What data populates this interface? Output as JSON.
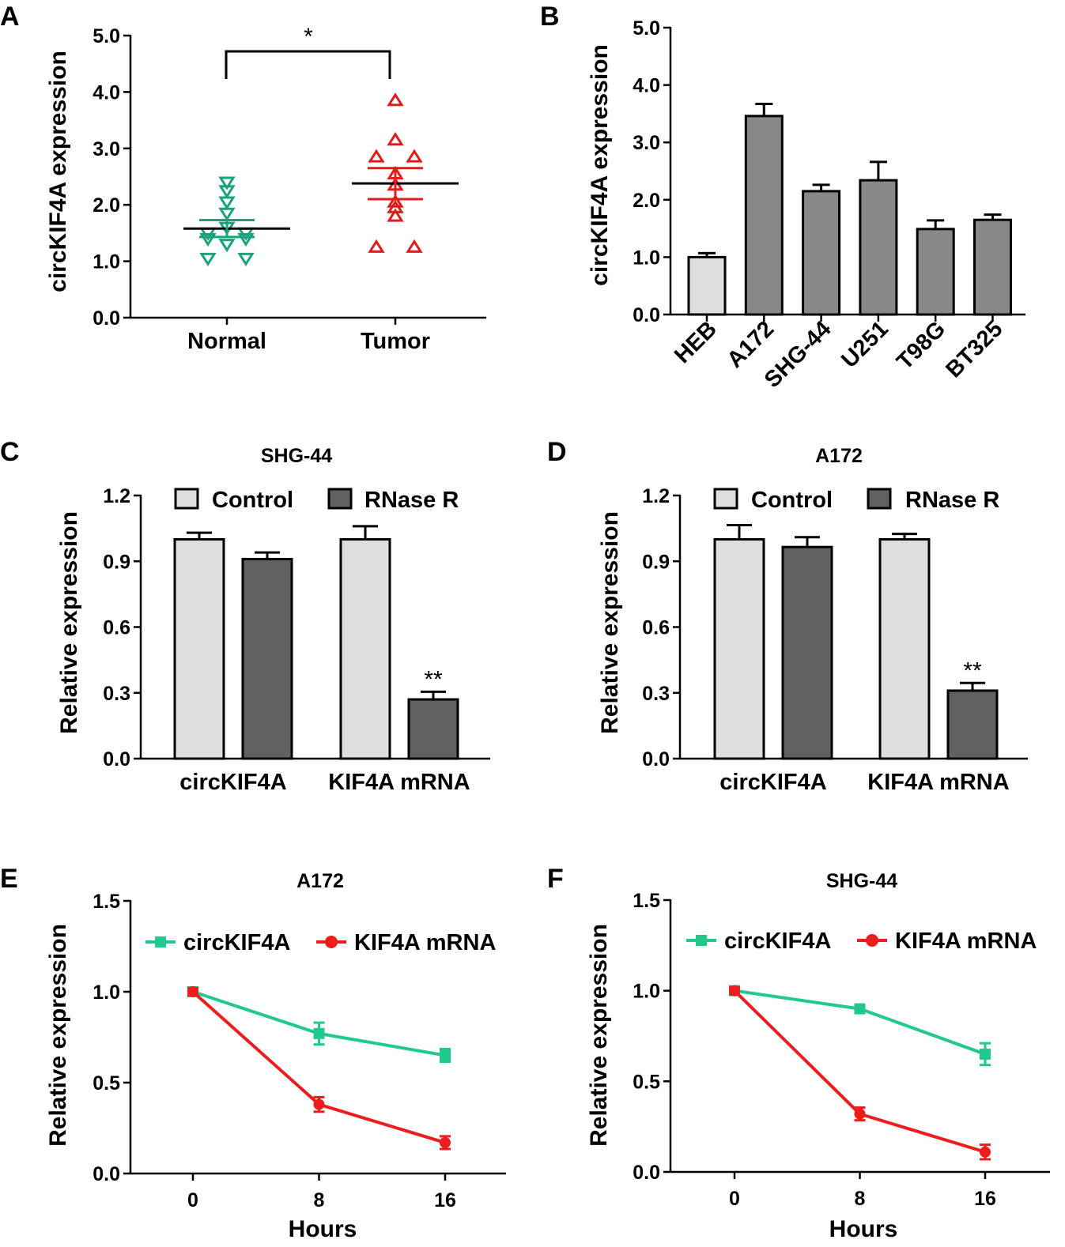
{
  "figure": {
    "panels": [
      {
        "id": "A",
        "label": "A"
      },
      {
        "id": "B",
        "label": "B"
      },
      {
        "id": "C",
        "label": "C"
      },
      {
        "id": "D",
        "label": "D"
      },
      {
        "id": "E",
        "label": "E"
      },
      {
        "id": "F",
        "label": "F"
      }
    ]
  },
  "colors": {
    "normal": "#1aa37a",
    "tumor": "#e31b1b",
    "control": "#dedede",
    "rnase": "#616161",
    "cell_bar": "#888888",
    "heb_bar": "#dedede",
    "circ_line": "#20c98c",
    "mrna_line": "#ee1c1c"
  },
  "chart_data": [
    {
      "id": "A",
      "type": "scatter",
      "title": "",
      "xlabel": "",
      "ylabel": "circKIF4A expression",
      "ylim": [
        0,
        5
      ],
      "yticks": [
        "0.0",
        "1.0",
        "2.0",
        "3.0",
        "4.0",
        "5.0"
      ],
      "categories": [
        "Normal",
        "Tumor"
      ],
      "series": [
        {
          "name": "Normal",
          "marker": "triangle-down",
          "color": "#1aa37a",
          "points": [
            2.4,
            2.25,
            2.05,
            1.85,
            1.6,
            1.5,
            1.5,
            1.4,
            1.4,
            1.3,
            1.05,
            1.05
          ],
          "mean": 1.58,
          "sem_low": 1.43,
          "sem_high": 1.73
        },
        {
          "name": "Tumor",
          "marker": "triangle-up",
          "color": "#e31b1b",
          "points": [
            3.85,
            3.15,
            2.85,
            2.85,
            2.55,
            2.35,
            2.05,
            1.95,
            1.8,
            1.25,
            1.25
          ],
          "mean": 2.38,
          "sem_low": 2.1,
          "sem_high": 2.65
        }
      ],
      "annotations": [
        {
          "text": "*",
          "between": [
            "Normal",
            "Tumor"
          ]
        }
      ]
    },
    {
      "id": "B",
      "type": "bar",
      "title": "",
      "xlabel": "",
      "ylabel": "circKIF4A expression",
      "ylim": [
        0,
        5
      ],
      "yticks": [
        "0.0",
        "1.0",
        "2.0",
        "3.0",
        "4.0",
        "5.0"
      ],
      "categories": [
        "HEB",
        "A172",
        "SHG-44",
        "U251",
        "T98G",
        "BT325"
      ],
      "values": [
        1.0,
        3.46,
        2.15,
        2.34,
        1.49,
        1.65
      ],
      "errors": [
        0.07,
        0.21,
        0.11,
        0.32,
        0.15,
        0.09
      ]
    },
    {
      "id": "C",
      "type": "bar",
      "title": "SHG-44",
      "xlabel": "",
      "ylabel": "Relative expression",
      "ylim": [
        0,
        1.2
      ],
      "yticks": [
        "0.0",
        "0.3",
        "0.6",
        "0.9",
        "1.2"
      ],
      "categories": [
        "circKIF4A",
        "KIF4A mRNA"
      ],
      "series": [
        {
          "name": "Control",
          "values": [
            1.0,
            1.0
          ],
          "errors": [
            0.03,
            0.06
          ]
        },
        {
          "name": "RNase R",
          "values": [
            0.91,
            0.27
          ],
          "errors": [
            0.03,
            0.035
          ]
        }
      ],
      "annotations": [
        {
          "text": "**",
          "category": "KIF4A mRNA",
          "series": "RNase R"
        }
      ]
    },
    {
      "id": "D",
      "type": "bar",
      "title": "A172",
      "xlabel": "",
      "ylabel": "Relative expression",
      "ylim": [
        0,
        1.2
      ],
      "yticks": [
        "0.0",
        "0.3",
        "0.6",
        "0.9",
        "1.2"
      ],
      "categories": [
        "circKIF4A",
        "KIF4A mRNA"
      ],
      "series": [
        {
          "name": "Control",
          "values": [
            1.0,
            1.0
          ],
          "errors": [
            0.065,
            0.025
          ]
        },
        {
          "name": "RNase R",
          "values": [
            0.965,
            0.31
          ],
          "errors": [
            0.045,
            0.035
          ]
        }
      ],
      "annotations": [
        {
          "text": "**",
          "category": "KIF4A mRNA",
          "series": "RNase R"
        }
      ]
    },
    {
      "id": "E",
      "type": "line",
      "title": "A172",
      "xlabel": "Hours",
      "ylabel": "Relative expression",
      "ylim": [
        0,
        1.5
      ],
      "yticks": [
        "0.0",
        "0.5",
        "1.0",
        "1.5"
      ],
      "x": [
        0,
        8,
        16
      ],
      "xticks": [
        "0",
        "8",
        "16"
      ],
      "series": [
        {
          "name": "circKIF4A",
          "values": [
            1.0,
            0.77,
            0.65
          ],
          "errors": [
            0.02,
            0.06,
            0.035
          ]
        },
        {
          "name": "KIF4A mRNA",
          "values": [
            1.0,
            0.38,
            0.17
          ],
          "errors": [
            0.02,
            0.04,
            0.035
          ]
        }
      ]
    },
    {
      "id": "F",
      "type": "line",
      "title": "SHG-44",
      "xlabel": "Hours",
      "ylabel": "Relative expression",
      "ylim": [
        0,
        1.5
      ],
      "yticks": [
        "0.0",
        "0.5",
        "1.0",
        "1.5"
      ],
      "x": [
        0,
        8,
        16
      ],
      "xticks": [
        "0",
        "8",
        "16"
      ],
      "series": [
        {
          "name": "circKIF4A",
          "values": [
            1.0,
            0.9,
            0.65
          ],
          "errors": [
            0.02,
            0.02,
            0.06
          ]
        },
        {
          "name": "KIF4A mRNA",
          "values": [
            1.0,
            0.32,
            0.11
          ],
          "errors": [
            0.02,
            0.035,
            0.04
          ]
        }
      ]
    }
  ]
}
